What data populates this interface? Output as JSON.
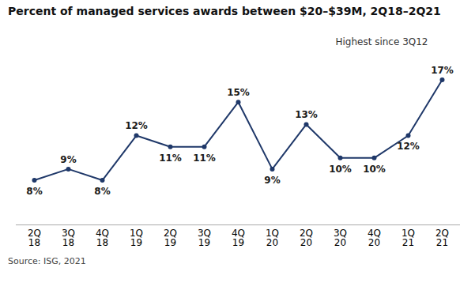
{
  "chart_data": {
    "type": "line",
    "title": "Percent of managed services awards between $20–$39M, 2Q18–2Q21",
    "categories": [
      "2Q\n18",
      "3Q\n18",
      "4Q\n18",
      "1Q\n19",
      "2Q\n19",
      "3Q\n19",
      "4Q\n19",
      "1Q\n20",
      "2Q\n20",
      "3Q\n20",
      "4Q\n20",
      "1Q\n21",
      "2Q\n21"
    ],
    "values": [
      8,
      9,
      8,
      12,
      11,
      11,
      15,
      9,
      13,
      10,
      10,
      12,
      17
    ],
    "value_labels": [
      "8%",
      "9%",
      "8%",
      "12%",
      "11%",
      "11%",
      "15%",
      "9%",
      "13%",
      "10%",
      "10%",
      "12%",
      "17%"
    ],
    "data_labels": true,
    "color": "#1f3869",
    "marker": "circle",
    "ylim": [
      4,
      21
    ],
    "tick_labels": "x",
    "grid": false,
    "annotations": [
      "Highest since 3Q12"
    ],
    "source": "Source: ISG, 2021"
  }
}
